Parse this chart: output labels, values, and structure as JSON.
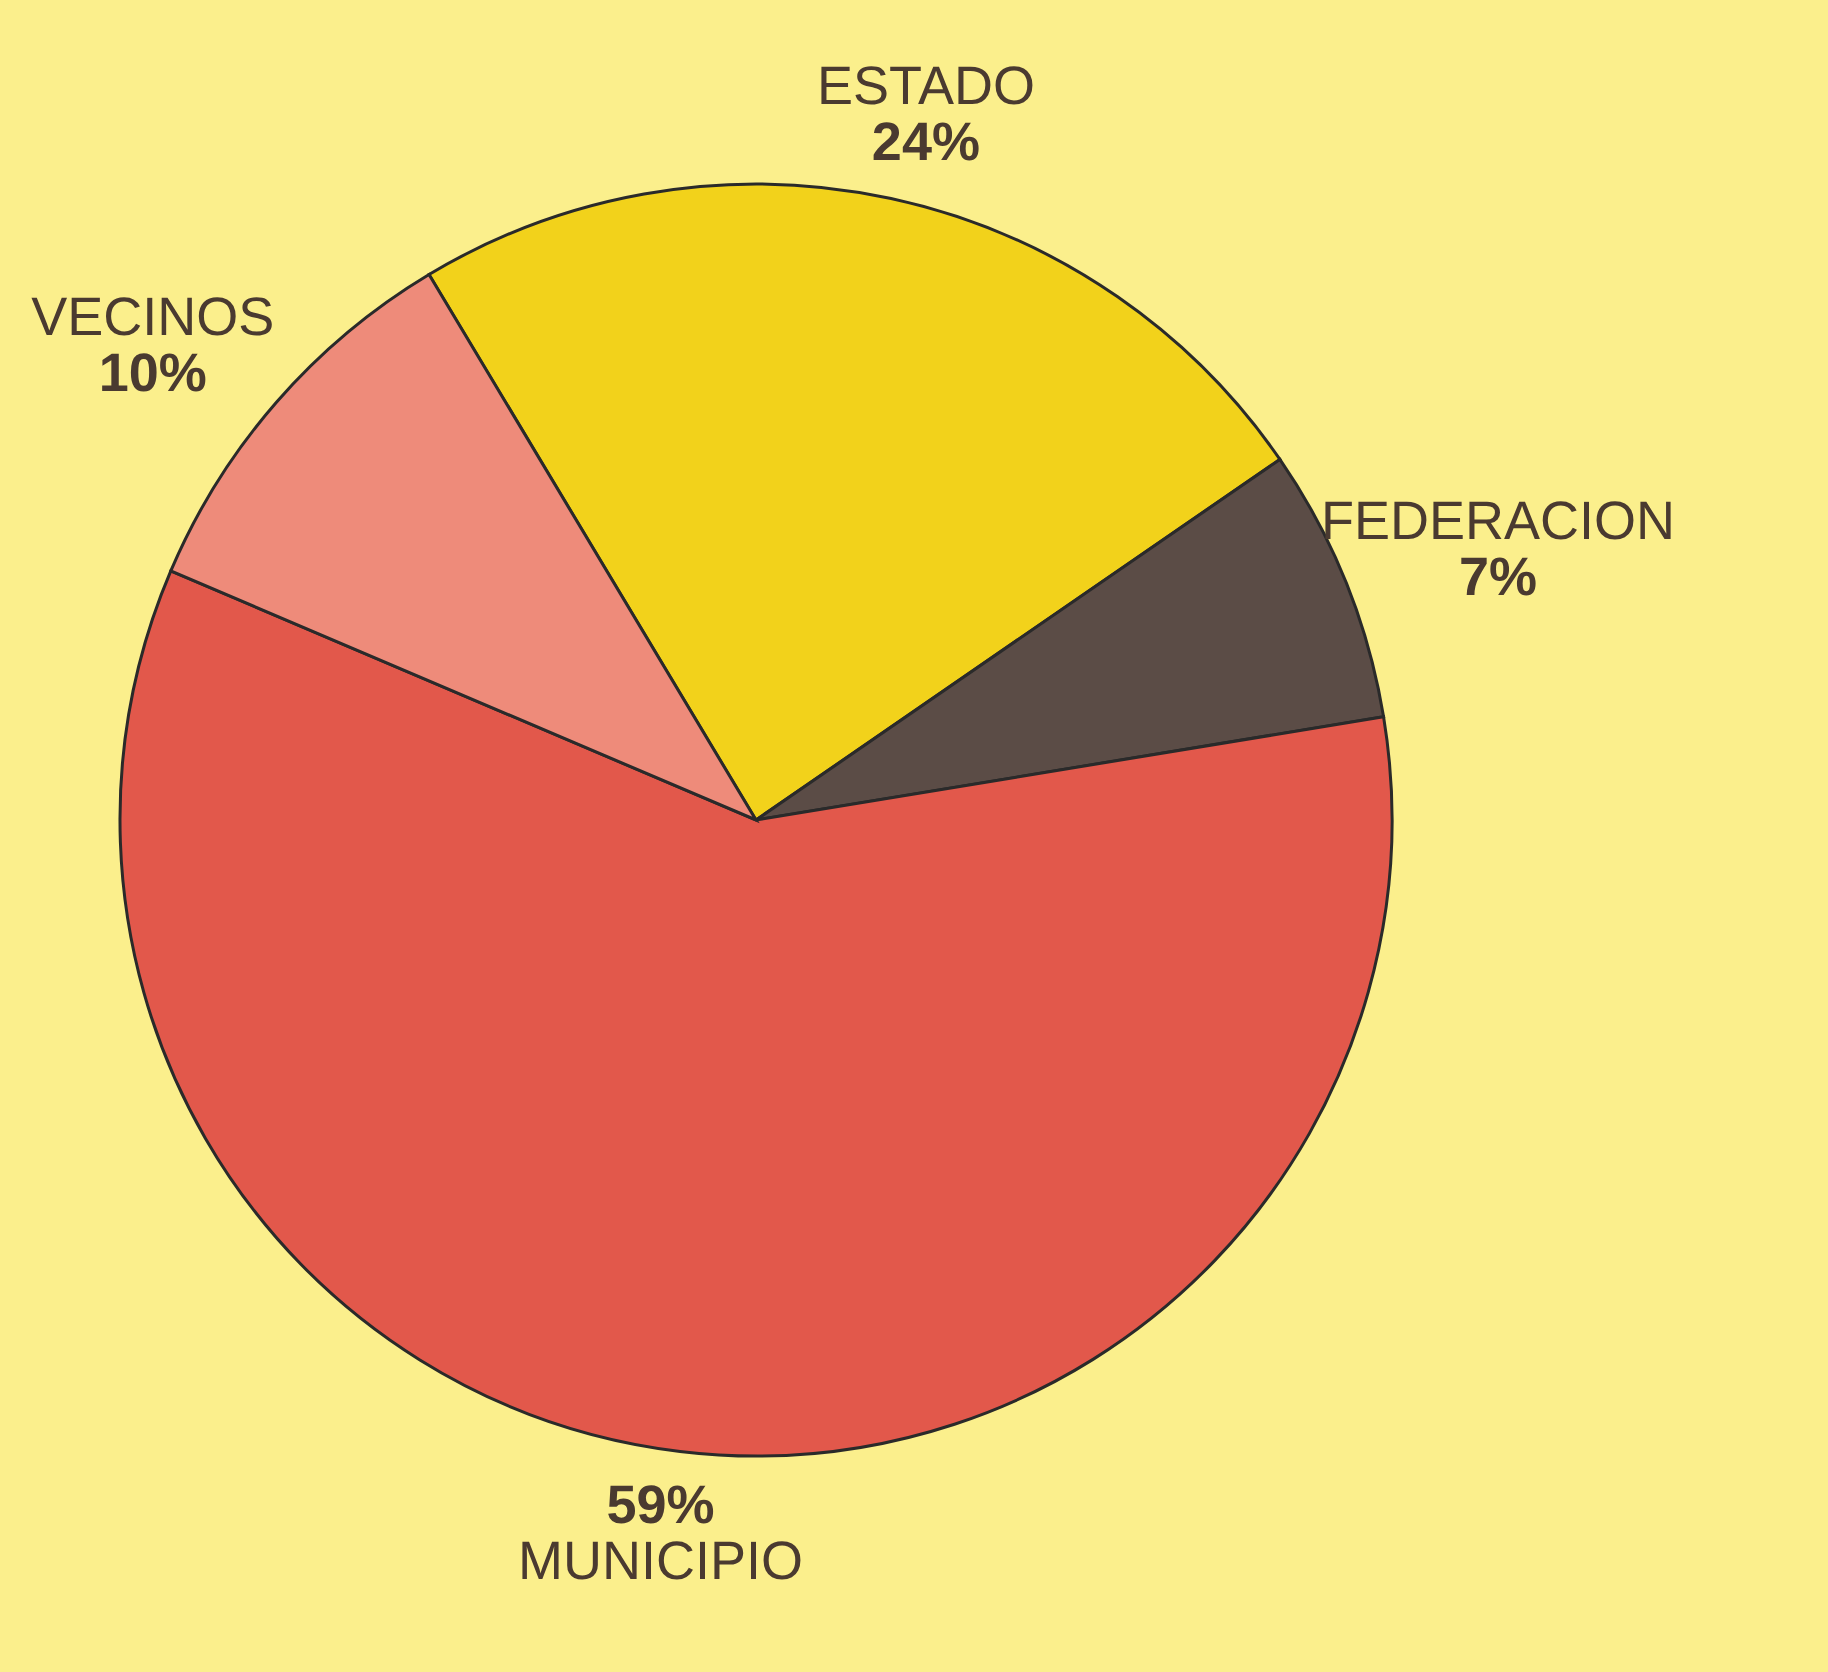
{
  "chart_data": {
    "type": "pie",
    "categories": [
      "ESTADO",
      "FEDERACION",
      "MUNICIPIO",
      "VECINOS"
    ],
    "values": [
      24,
      7,
      59,
      10
    ],
    "colors": [
      "#f2d21b",
      "#5b4c46",
      "#e2584b",
      "#ee8b7a"
    ],
    "value_labels": [
      "24%",
      "7%",
      "59%",
      "10%"
    ]
  }
}
